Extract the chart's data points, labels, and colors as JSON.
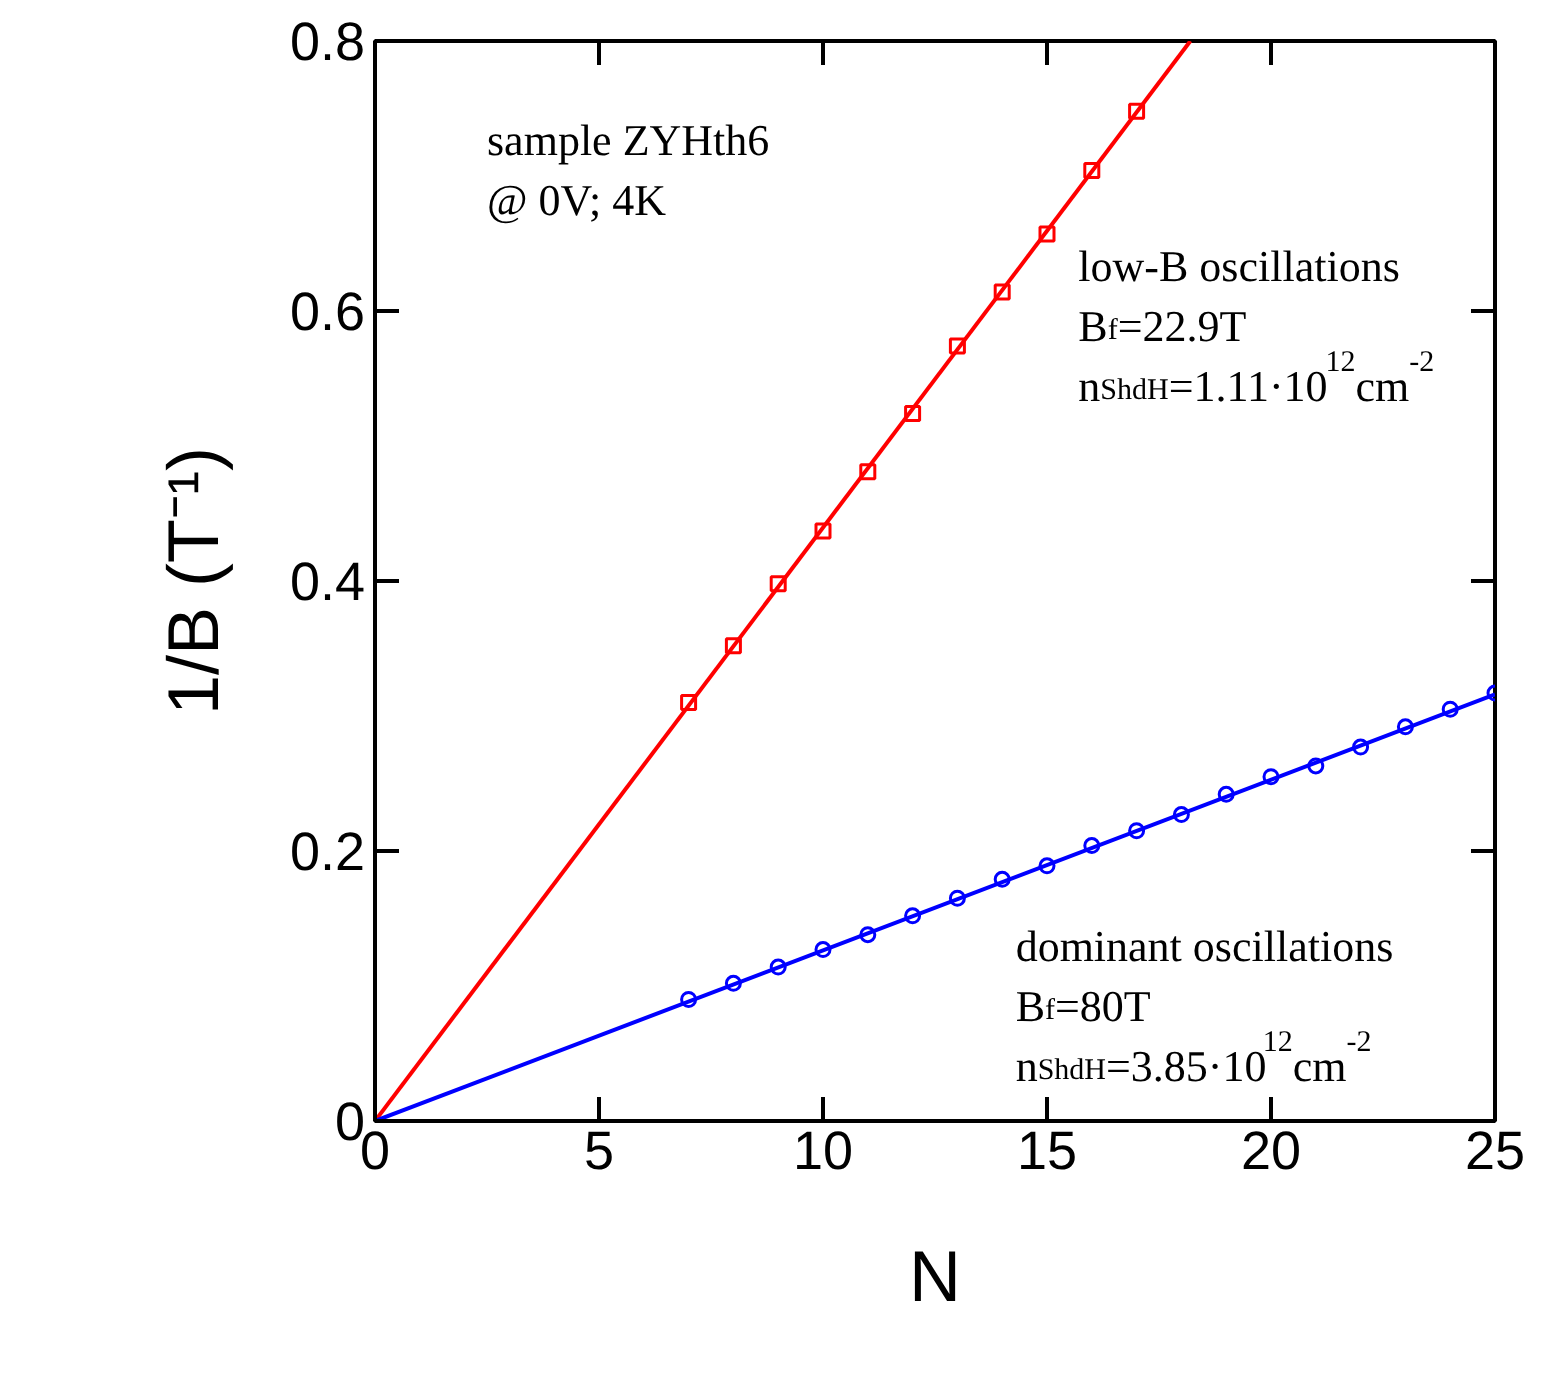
{
  "chart_data": {
    "type": "scatter",
    "xlabel": "N",
    "ylabel": "1/B (T⁻¹)",
    "xlim": [
      0,
      25
    ],
    "ylim": [
      0,
      0.8
    ],
    "xticks": [
      0,
      5,
      10,
      15,
      20,
      25
    ],
    "yticks": [
      0,
      0.2,
      0.4,
      0.6,
      0.8
    ],
    "grid": false,
    "series": [
      {
        "type": "line",
        "color": "#ff0000",
        "x": [
          0,
          18.2
        ],
        "values": [
          0,
          0.8
        ]
      },
      {
        "type": "line",
        "color": "#0000ff",
        "x": [
          0,
          25
        ],
        "values": [
          0,
          0.316
        ]
      },
      {
        "marker": "square",
        "color": "#ff0000",
        "x": [
          7,
          8,
          9,
          10,
          11,
          12,
          13,
          14,
          15,
          16,
          17
        ],
        "values": [
          0.31,
          0.352,
          0.398,
          0.437,
          0.481,
          0.524,
          0.574,
          0.614,
          0.657,
          0.704,
          0.748
        ]
      },
      {
        "marker": "circle",
        "color": "#0000ff",
        "x": [
          7,
          8,
          9,
          10,
          11,
          12,
          13,
          14,
          15,
          16,
          17,
          18,
          19,
          20,
          21,
          22,
          23,
          24,
          25
        ],
        "values": [
          0.09,
          0.102,
          0.114,
          0.127,
          0.138,
          0.152,
          0.165,
          0.179,
          0.189,
          0.204,
          0.215,
          0.227,
          0.242,
          0.255,
          0.263,
          0.277,
          0.292,
          0.305,
          0.317
        ]
      }
    ],
    "annotations": [
      "sample ZYHth6\n@ 0V; 4K",
      "low-B oscillations\nB$_{f}$=22.9T\nn$_{ShdH}$=1.11·10$^{12}$cm$^{-2}$",
      "dominant oscillations\nB$_{f}$=80T\nn$_{ShdH}$=3.85·10$^{12}$cm$^{-2}$"
    ]
  }
}
